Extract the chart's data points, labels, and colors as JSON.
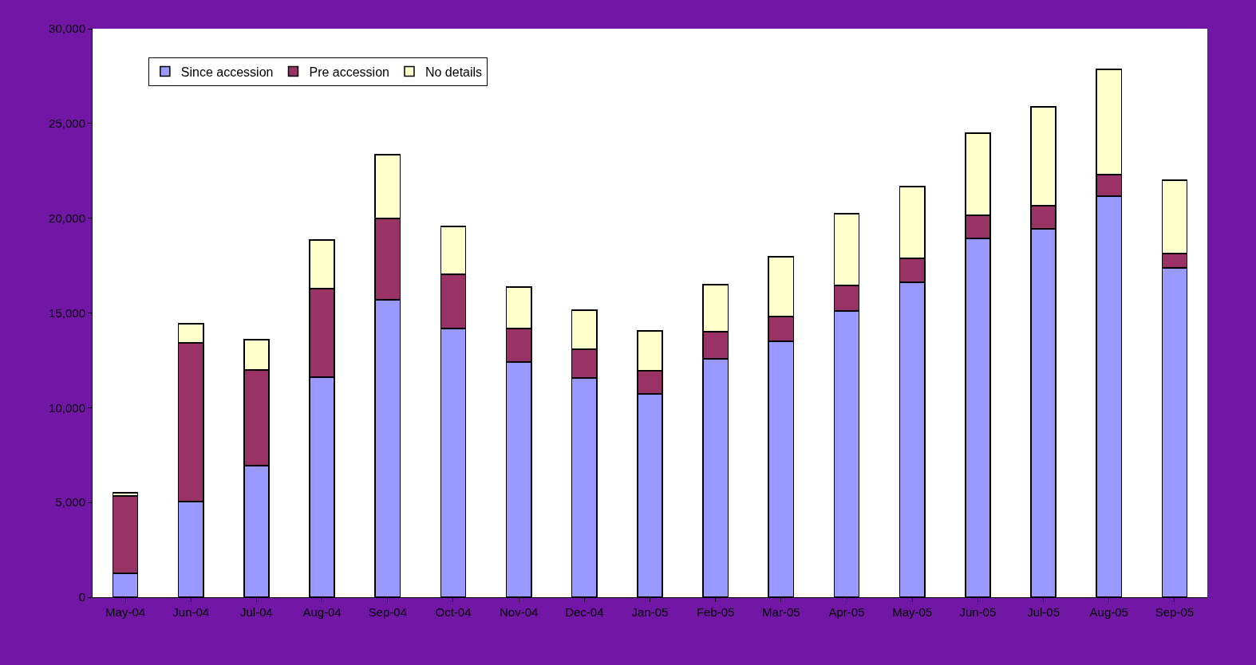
{
  "chart_data": {
    "type": "bar",
    "stacked": true,
    "categories": [
      "May-04",
      "Jun-04",
      "Jul-04",
      "Aug-04",
      "Sep-04",
      "Oct-04",
      "Nov-04",
      "Dec-04",
      "Jan-05",
      "Feb-05",
      "Mar-05",
      "Apr-05",
      "May-05",
      "Jun-05",
      "Jul-05",
      "Aug-05",
      "Sep-05"
    ],
    "series": [
      {
        "name": "Since accession",
        "color": "#9999ff",
        "values": [
          1260,
          5050,
          6940,
          11610,
          15690,
          14180,
          12410,
          11570,
          10730,
          12580,
          13500,
          15100,
          16620,
          18930,
          19440,
          21160,
          17380
        ]
      },
      {
        "name": "Pre accession",
        "color": "#993366",
        "values": [
          4080,
          8370,
          5050,
          4670,
          4290,
          2860,
          1770,
          1510,
          1220,
          1430,
          1310,
          1350,
          1260,
          1220,
          1220,
          1140,
          750
        ]
      },
      {
        "name": "No details",
        "color": "#ffffcc",
        "values": [
          170,
          1010,
          1600,
          2570,
          3370,
          2520,
          2190,
          2070,
          2100,
          2480,
          3150,
          3790,
          3790,
          4330,
          5210,
          5550,
          3870
        ]
      }
    ],
    "ylim": [
      0,
      30000
    ],
    "yticks": [
      {
        "value": 0,
        "label": "0"
      },
      {
        "value": 5000,
        "label": "5,000"
      },
      {
        "value": 10000,
        "label": "10,000"
      },
      {
        "value": 15000,
        "label": "15,000"
      },
      {
        "value": 20000,
        "label": "20,000"
      },
      {
        "value": 25000,
        "label": "25,000"
      },
      {
        "value": 30000,
        "label": "30,000"
      }
    ],
    "grid": false,
    "legend": "top left"
  }
}
